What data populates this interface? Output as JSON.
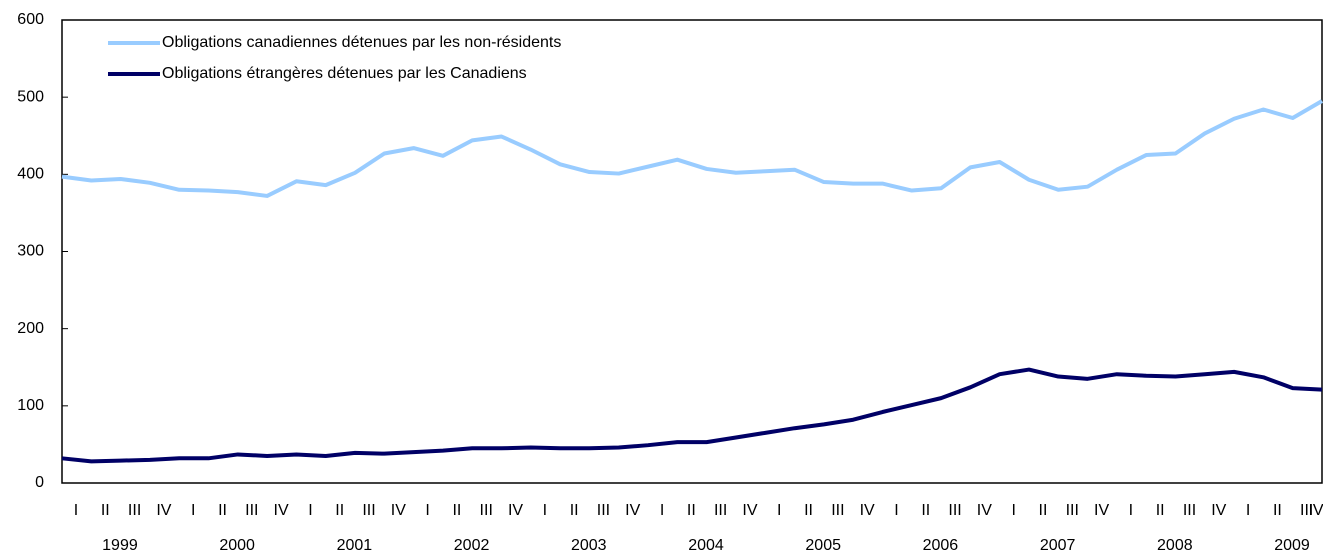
{
  "chart_data": {
    "type": "line",
    "categories": [
      "I",
      "II",
      "III",
      "IV",
      "I",
      "II",
      "III",
      "IV",
      "I",
      "II",
      "III",
      "IV",
      "I",
      "II",
      "III",
      "IV",
      "I",
      "II",
      "III",
      "IV",
      "I",
      "II",
      "III",
      "IV",
      "I",
      "II",
      "III",
      "IV",
      "I",
      "II",
      "III",
      "IV",
      "I",
      "II",
      "III",
      "IV",
      "I",
      "II",
      "III",
      "IV",
      "I",
      "II",
      "III",
      "IV"
    ],
    "year_labels": [
      "1999",
      "2000",
      "2001",
      "2002",
      "2003",
      "2004",
      "2005",
      "2006",
      "2007",
      "2008",
      "2009"
    ],
    "series": [
      {
        "name": "Obligations canadiennes détenues par les non-résidents",
        "color": "#99ccff",
        "values": [
          397,
          392,
          394,
          389,
          380,
          379,
          377,
          372,
          391,
          386,
          402,
          427,
          434,
          424,
          444,
          449,
          432,
          413,
          403,
          401,
          410,
          419,
          407,
          402,
          404,
          406,
          390,
          388,
          388,
          379,
          382,
          409,
          416,
          393,
          380,
          384,
          406,
          425,
          427,
          453,
          472,
          484,
          473,
          495
        ]
      },
      {
        "name": "Obligations étrangères détenues par les Canadiens",
        "color": "#000066",
        "values": [
          32,
          28,
          29,
          30,
          32,
          32,
          37,
          35,
          37,
          35,
          39,
          38,
          40,
          42,
          45,
          45,
          46,
          45,
          45,
          46,
          49,
          53,
          53,
          59,
          65,
          71,
          76,
          82,
          92,
          101,
          110,
          124,
          141,
          147,
          138,
          135,
          141,
          139,
          138,
          141,
          144,
          137,
          123,
          121
        ]
      }
    ],
    "ylim": [
      0,
      600
    ],
    "yticks": [
      0,
      100,
      200,
      300,
      400,
      500,
      600
    ],
    "grid": false,
    "legend": "top-left"
  }
}
